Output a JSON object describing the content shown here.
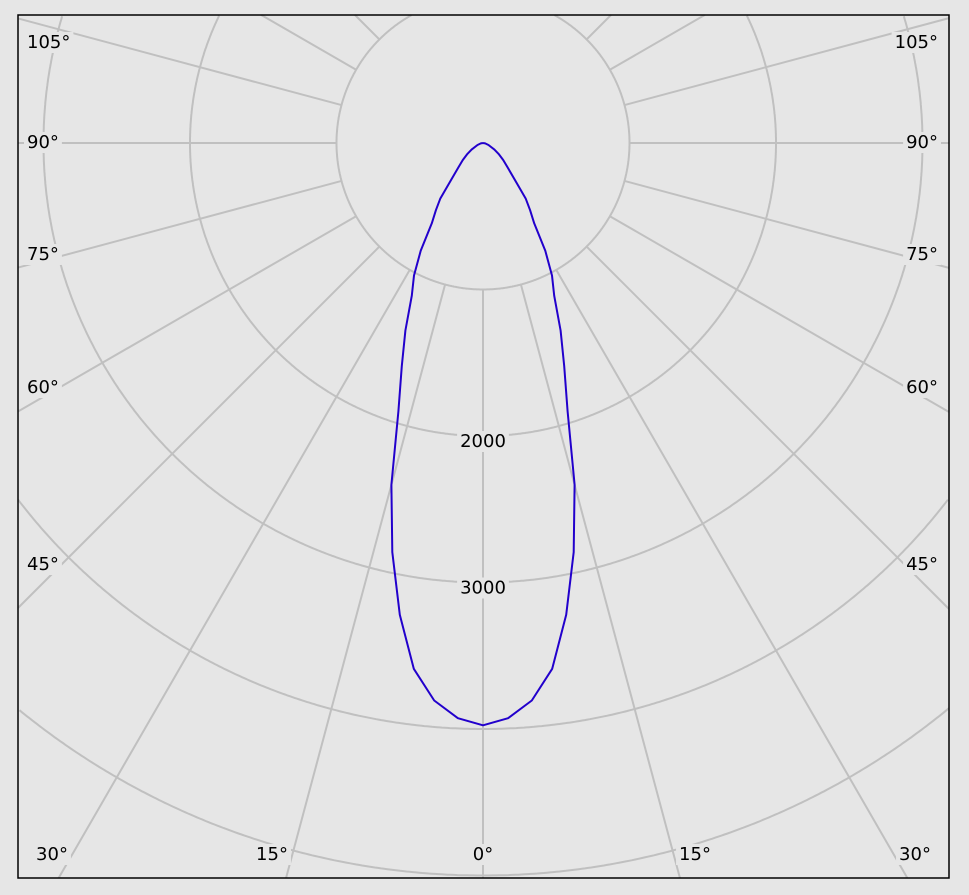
{
  "chart_data": {
    "type": "polar-line",
    "title": "",
    "angle_zero": "down",
    "angle_unit": "degrees",
    "angle_ticks": [
      0,
      15,
      30,
      45,
      60,
      75,
      90,
      105
    ],
    "angle_tick_labels": {
      "bottom": [
        "30°",
        "15°",
        "0°",
        "15°",
        "30°"
      ],
      "left": [
        "105°",
        "90°",
        "75°",
        "60°",
        "45°"
      ],
      "right": [
        "105°",
        "90°",
        "75°",
        "60°",
        "45°"
      ]
    },
    "radial_ticks": [
      1000,
      2000,
      3000,
      4000,
      5000,
      6000
    ],
    "radial_tick_labels": [
      "2000",
      "3000"
    ],
    "radial_grid_start": 1000,
    "grid": true,
    "symmetric": true,
    "series": [
      {
        "color": "#2200cc",
        "angles": [
          0,
          2.5,
          5,
          7.5,
          10,
          12.5,
          15,
          17.5,
          20,
          22.5,
          25,
          27.5,
          30,
          32.5,
          35,
          37.5,
          40,
          45,
          50,
          55,
          60,
          70,
          80,
          90
        ],
        "values": [
          3975,
          3930,
          3820,
          3620,
          3270,
          2860,
          2415,
          1920,
          1620,
          1385,
          1150,
          1020,
          850,
          650,
          560,
          480,
          360,
          240,
          180,
          130,
          90,
          40,
          15,
          0
        ]
      }
    ]
  },
  "colors": {
    "background": "#e6e6e6",
    "grid": "#c0c0c0",
    "frame": "#000000",
    "curve": "#2200cc"
  }
}
